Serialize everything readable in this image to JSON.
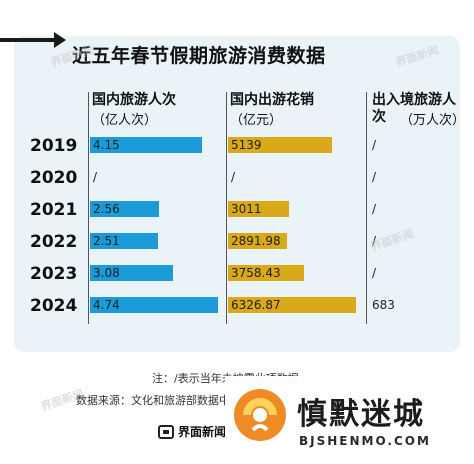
{
  "chart_data": {
    "type": "bar",
    "title": "近五年春节假期旅游消费数据",
    "categories": [
      "2019",
      "2020",
      "2021",
      "2022",
      "2023",
      "2024"
    ],
    "series": [
      {
        "name": "国内旅游人次",
        "unit": "（亿人次）",
        "values": [
          4.15,
          null,
          2.56,
          2.51,
          3.08,
          4.74
        ],
        "labels": [
          "4.15",
          "/",
          "2.56",
          "2.51",
          "3.08",
          "4.74"
        ],
        "color": "#1a9ad6"
      },
      {
        "name": "国内出游花销",
        "unit": "（亿元）",
        "values": [
          5139,
          null,
          3011,
          2891.98,
          3758.43,
          6326.87
        ],
        "labels": [
          "5139",
          "/",
          "3011",
          "2891.98",
          "3758.43",
          "6326.87"
        ],
        "color": "#d9a91a"
      },
      {
        "name": "出入境旅游人次",
        "unit": "（万人次）",
        "values": [
          null,
          null,
          null,
          null,
          null,
          683
        ],
        "labels": [
          "/",
          "/",
          "/",
          "/",
          "/",
          "683"
        ]
      }
    ]
  },
  "footer": {
    "note": "注：/表示当年未披露此项数据",
    "source": "数据来源：文化和旅游部数据中心",
    "publisher": "界面新闻"
  },
  "watermark": {
    "stamp": "界面新闻"
  },
  "overlay": {
    "name": "慎默迷城",
    "url": "BJSHENMO.COM"
  }
}
